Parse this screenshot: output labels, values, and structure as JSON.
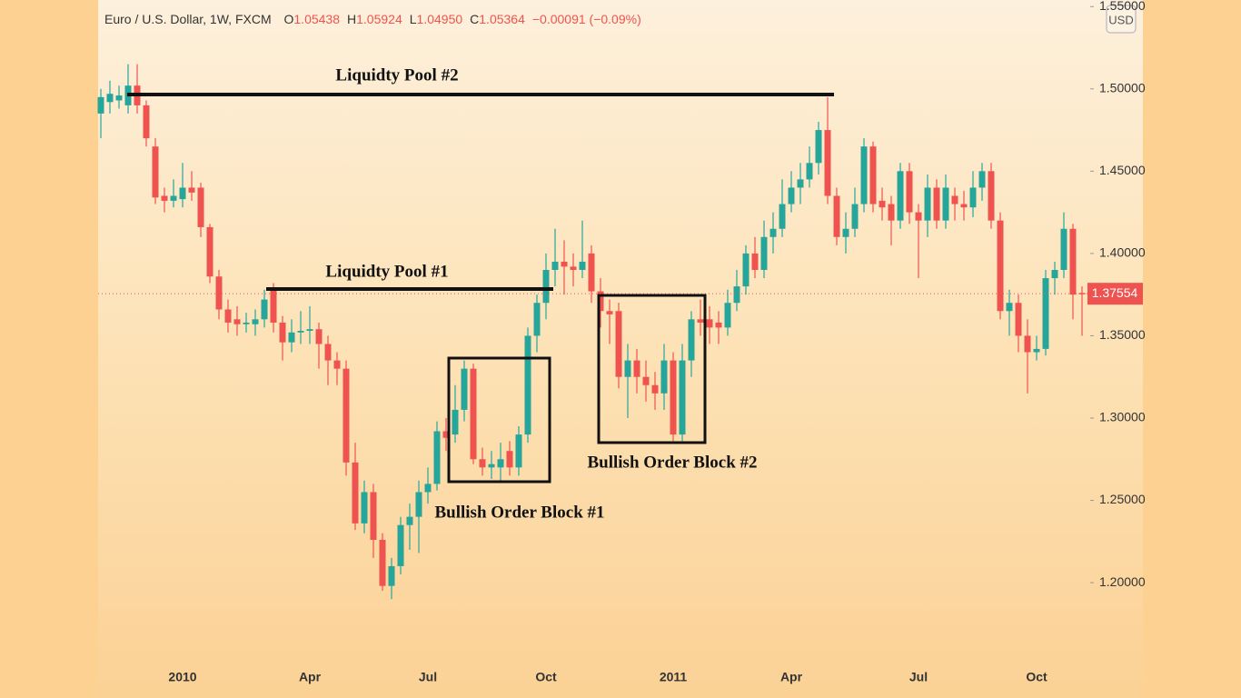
{
  "header": {
    "title": "Euro / U.S. Dollar, 1W, FXCM",
    "ohlc": [
      {
        "key": "O",
        "value": "1.05438"
      },
      {
        "key": "H",
        "value": "1.05924"
      },
      {
        "key": "L",
        "value": "1.04950"
      },
      {
        "key": "C",
        "value": "1.05364"
      }
    ],
    "change": "−0.00091 (−0.09%)",
    "currency": "USD"
  },
  "chart_data": {
    "type": "candlestick",
    "up_color": "#26a69a",
    "down_color": "#ef5350",
    "categories": [
      null,
      null,
      null,
      null,
      null,
      null,
      null,
      null,
      null,
      "2010",
      null,
      null,
      null,
      null,
      null,
      null,
      null,
      null,
      null,
      null,
      null,
      null,
      null,
      "Apr",
      null,
      null,
      null,
      null,
      null,
      null,
      null,
      null,
      null,
      null,
      null,
      null,
      "Jul",
      null,
      null,
      null,
      null,
      null,
      null,
      null,
      null,
      null,
      null,
      null,
      null,
      "Oct",
      null,
      null,
      null,
      null,
      null,
      null,
      null,
      null,
      null,
      null,
      null,
      null,
      null,
      "2011",
      null,
      null,
      null,
      null,
      null,
      null,
      null,
      null,
      null,
      null,
      null,
      null,
      "Apr",
      null,
      null,
      null,
      null,
      null,
      null,
      null,
      null,
      null,
      null,
      null,
      null,
      null,
      "Jul",
      null,
      null,
      null,
      null,
      null,
      null,
      null,
      null,
      null,
      null,
      null,
      null,
      "Oct",
      null,
      null,
      null,
      null,
      null
    ],
    "open": [
      1.485,
      1.492,
      1.493,
      1.49,
      1.502,
      1.49,
      1.465,
      1.435,
      1.432,
      1.433,
      1.44,
      1.44,
      1.416,
      1.386,
      1.366,
      1.36,
      1.357,
      1.357,
      1.36,
      1.379,
      1.358,
      1.346,
      1.352,
      1.353,
      1.354,
      1.345,
      1.335,
      1.33,
      1.273,
      1.236,
      1.255,
      1.226,
      1.198,
      1.21,
      1.235,
      1.24,
      1.255,
      1.26,
      1.292,
      1.29,
      1.305,
      1.33,
      1.275,
      1.27,
      1.27,
      1.28,
      1.27,
      1.29,
      1.35,
      1.37,
      1.39,
      1.395,
      1.392,
      1.39,
      1.4,
      1.377,
      1.365,
      1.365,
      1.325,
      1.335,
      1.325,
      1.32,
      1.315,
      1.335,
      1.29,
      1.335,
      1.36,
      1.36,
      1.358,
      1.355,
      1.37,
      1.38,
      1.4,
      1.39,
      1.41,
      1.415,
      1.43,
      1.44,
      1.445,
      1.455,
      1.475,
      1.435,
      1.41,
      1.415,
      1.43,
      1.465,
      1.432,
      1.43,
      1.42,
      1.45,
      1.425,
      1.42,
      1.44,
      1.42,
      1.435,
      1.43,
      1.428,
      1.44,
      1.45,
      1.42,
      1.365,
      1.37,
      1.35,
      1.34,
      1.342,
      1.385,
      1.39,
      1.415,
      1.376
    ],
    "high": [
      1.5,
      1.505,
      1.502,
      1.515,
      1.515,
      1.493,
      1.47,
      1.44,
      1.445,
      1.455,
      1.45,
      1.443,
      1.418,
      1.39,
      1.372,
      1.368,
      1.364,
      1.366,
      1.378,
      1.382,
      1.362,
      1.36,
      1.365,
      1.368,
      1.358,
      1.35,
      1.34,
      1.335,
      1.285,
      1.262,
      1.26,
      1.23,
      1.215,
      1.24,
      1.248,
      1.262,
      1.27,
      1.298,
      1.3,
      1.32,
      1.335,
      1.333,
      1.282,
      1.28,
      1.285,
      1.286,
      1.295,
      1.355,
      1.375,
      1.4,
      1.415,
      1.408,
      1.4,
      1.42,
      1.405,
      1.385,
      1.372,
      1.37,
      1.345,
      1.342,
      1.335,
      1.328,
      1.345,
      1.34,
      1.345,
      1.365,
      1.372,
      1.368,
      1.365,
      1.378,
      1.39,
      1.405,
      1.41,
      1.42,
      1.425,
      1.445,
      1.45,
      1.455,
      1.465,
      1.48,
      1.495,
      1.44,
      1.425,
      1.44,
      1.47,
      1.468,
      1.44,
      1.435,
      1.455,
      1.455,
      1.43,
      1.448,
      1.445,
      1.448,
      1.44,
      1.438,
      1.45,
      1.455,
      1.455,
      1.425,
      1.378,
      1.375,
      1.36,
      1.35,
      1.39,
      1.395,
      1.425,
      1.418,
      1.38
    ],
    "low": [
      1.47,
      1.485,
      1.488,
      1.485,
      1.485,
      1.465,
      1.43,
      1.425,
      1.428,
      1.428,
      1.432,
      1.41,
      1.382,
      1.36,
      1.352,
      1.35,
      1.352,
      1.35,
      1.355,
      1.352,
      1.335,
      1.34,
      1.345,
      1.345,
      1.33,
      1.32,
      1.32,
      1.265,
      1.232,
      1.23,
      1.215,
      1.195,
      1.19,
      1.205,
      1.22,
      1.218,
      1.248,
      1.256,
      1.28,
      1.285,
      1.298,
      1.272,
      1.265,
      1.263,
      1.262,
      1.265,
      1.265,
      1.285,
      1.34,
      1.36,
      1.38,
      1.375,
      1.38,
      1.385,
      1.37,
      1.355,
      1.345,
      1.318,
      1.3,
      1.315,
      1.31,
      1.305,
      1.305,
      1.286,
      1.286,
      1.325,
      1.35,
      1.345,
      1.345,
      1.35,
      1.365,
      1.375,
      1.385,
      1.385,
      1.4,
      1.41,
      1.425,
      1.43,
      1.44,
      1.448,
      1.43,
      1.405,
      1.4,
      1.41,
      1.425,
      1.425,
      1.42,
      1.405,
      1.415,
      1.418,
      1.385,
      1.41,
      1.415,
      1.415,
      1.42,
      1.42,
      1.422,
      1.432,
      1.415,
      1.36,
      1.35,
      1.34,
      1.315,
      1.335,
      1.338,
      1.375,
      1.385,
      1.36,
      1.35
    ],
    "close": [
      1.495,
      1.497,
      1.496,
      1.502,
      1.49,
      1.47,
      1.434,
      1.432,
      1.435,
      1.44,
      1.437,
      1.416,
      1.386,
      1.366,
      1.358,
      1.357,
      1.358,
      1.36,
      1.372,
      1.358,
      1.346,
      1.352,
      1.353,
      1.354,
      1.345,
      1.335,
      1.33,
      1.273,
      1.236,
      1.255,
      1.226,
      1.198,
      1.21,
      1.235,
      1.24,
      1.255,
      1.26,
      1.292,
      1.288,
      1.305,
      1.33,
      1.275,
      1.27,
      1.272,
      1.275,
      1.27,
      1.29,
      1.35,
      1.37,
      1.39,
      1.395,
      1.392,
      1.39,
      1.395,
      1.377,
      1.365,
      1.363,
      1.325,
      1.335,
      1.325,
      1.32,
      1.315,
      1.335,
      1.29,
      1.335,
      1.36,
      1.358,
      1.355,
      1.355,
      1.37,
      1.38,
      1.4,
      1.39,
      1.41,
      1.415,
      1.43,
      1.44,
      1.445,
      1.455,
      1.475,
      1.435,
      1.41,
      1.415,
      1.43,
      1.465,
      1.43,
      1.428,
      1.42,
      1.45,
      1.425,
      1.42,
      1.44,
      1.42,
      1.44,
      1.43,
      1.428,
      1.44,
      1.45,
      1.42,
      1.365,
      1.37,
      1.35,
      1.34,
      1.342,
      1.385,
      1.39,
      1.415,
      1.375,
      1.3755
    ],
    "ylim": [
      1.152,
      1.554
    ],
    "yticks": [
      {
        "value": 1.2,
        "label": "1.20000"
      },
      {
        "value": 1.25,
        "label": "1.25000"
      },
      {
        "value": 1.3,
        "label": "1.30000"
      },
      {
        "value": 1.35,
        "label": "1.35000"
      },
      {
        "value": 1.4,
        "label": "1.40000"
      },
      {
        "value": 1.45,
        "label": "1.45000"
      },
      {
        "value": 1.5,
        "label": "1.50000"
      },
      {
        "value": 1.55,
        "label": "1.55000"
      }
    ],
    "last_price": 1.37554,
    "annotations": [
      "Liquidty Pool #2",
      "Liquidty Pool #1",
      "Bullish Order Block #1",
      "Bullish Order Block #2"
    ]
  }
}
